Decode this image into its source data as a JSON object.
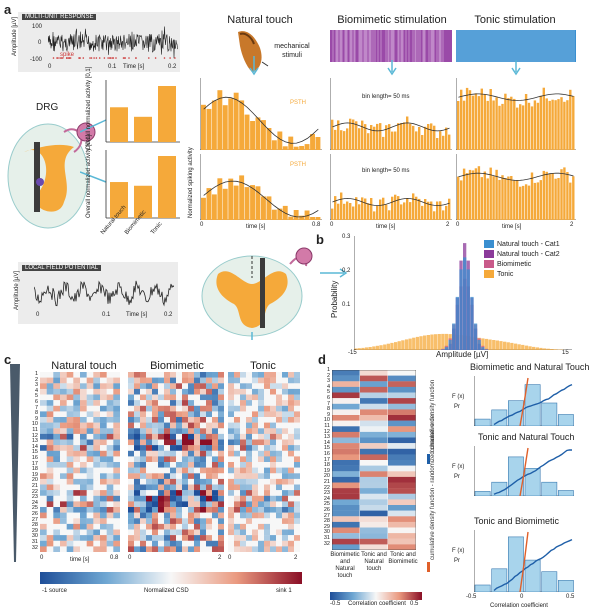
{
  "panels": {
    "a": {
      "letter": "a",
      "mua_title": "MULTI-UNIT RESPONSE",
      "mua_ylabel": "Amplitude [µV]",
      "mua_yticks": [
        "100",
        "0",
        "-100"
      ],
      "mua_xticks": [
        "0",
        "0.1",
        "0.2"
      ],
      "mua_xlabel": "Time [s]",
      "spike_label": "spike",
      "lfp_title": "LOCAL FIELD POTENTIAL",
      "lfp_ylabel": "Amplitude [µV]",
      "lfp_xticks": [
        "0",
        "0.1",
        "0.2"
      ],
      "lfp_xlabel": "Time [s]",
      "drg_label": "DRG",
      "bar_ylabel_top": "Overall normalized activity [0,1]",
      "bar_ylabel_bottom": "Overall normalized activity [0,1]",
      "bar_categories": [
        "Natural touch",
        "Biomimetic",
        "Tonic"
      ],
      "bar_top_values": [
        0.62,
        0.45,
        1.0
      ],
      "bar_bottom_values": [
        0.58,
        0.52,
        1.0
      ],
      "columns": [
        "Natural touch",
        "Biomimetic stimulation",
        "Tonic stimulation"
      ],
      "mechanical_label": "mechanical stimuli",
      "psth_label": "PSTH",
      "bin_label": "bin length= 50 ms",
      "psth_ylabel": "Normalized spiking activity",
      "psth_xlabel": "time [s]",
      "natural_xticks": [
        "0",
        "0.8"
      ],
      "stim_xticks": [
        "0",
        "2"
      ]
    },
    "b": {
      "letter": "b",
      "ylabel": "Probability",
      "xlabel": "Amplitude [µV]",
      "yticks": [
        "0.3",
        "0.2",
        "0.1",
        "0"
      ],
      "xticks": [
        "-15",
        "0",
        "15"
      ],
      "legend": [
        "Natural touch - Cat1",
        "Natural touch - Cat2",
        "Biomimetic",
        "Tonic"
      ]
    },
    "c": {
      "letter": "c",
      "titles": [
        "Natural touch",
        "Biomimetic",
        "Tonic"
      ],
      "channels": [
        "1",
        "2",
        "3",
        "4",
        "5",
        "6",
        "7",
        "8",
        "9",
        "10",
        "11",
        "12",
        "13",
        "14",
        "15",
        "16",
        "17",
        "18",
        "19",
        "20",
        "21",
        "22",
        "23",
        "24",
        "25",
        "26",
        "27",
        "28",
        "29",
        "30",
        "31",
        "32"
      ],
      "xlabel": "time [s]",
      "xticks_natural": [
        "0",
        "0.8"
      ],
      "xticks_bio": [
        "0",
        "2"
      ],
      "xticks_tonic": [
        "0",
        "2"
      ],
      "colorbar_left": "-1 source",
      "colorbar_center": "Normalized CSD",
      "colorbar_right": "sink  1"
    },
    "d": {
      "letter": "d",
      "columns": [
        "Biomimetic and Natural touch",
        "Tonic and Natural touch",
        "Tonic and Biomimetic"
      ],
      "colorbar_left": "-0.5",
      "colorbar_center": "Correlation coefficient",
      "colorbar_right": "0.5",
      "cdf_titles": [
        "Biomimetic and Natural Touch",
        "Tonic and Natural Touch",
        "Tonic and Biomimetic"
      ],
      "cdf_ylabel_fx": "F (x)",
      "cdf_ylabel_pr": "Pr",
      "cdf_side_label_1": "cumulative density function",
      "cdf_side_label_2": "cumulative density function - randomized channel order",
      "cdf_xticks": [
        "-0.5",
        "0",
        "0.5"
      ],
      "cdf_xlabel": "Correlation coefficient"
    }
  },
  "colors": {
    "orange": "#f5a93a",
    "purple": "#8b3a9a",
    "blue": "#3a8fd0",
    "teal": "#5ab8d6",
    "dark_blue": "#1f5fa8",
    "red": "#b2182b",
    "gray_bg": "#ececec"
  },
  "chart_data": [
    {
      "type": "bar",
      "categories": [
        "Natural touch",
        "Biomimetic",
        "Tonic"
      ],
      "values": [
        0.62,
        0.45,
        1.0
      ],
      "ylabel": "Overall normalized activity [0,1]"
    },
    {
      "type": "bar",
      "categories": [
        "Natural touch",
        "Biomimetic",
        "Tonic"
      ],
      "values": [
        0.58,
        0.52,
        1.0
      ],
      "ylabel": "Overall normalized activity [0,1]"
    },
    {
      "type": "bar",
      "xlabel": "Amplitude [µV]",
      "ylabel": "Probability",
      "xlim": [
        -15,
        15
      ],
      "ylim": [
        0,
        0.3
      ],
      "series": [
        {
          "name": "Natural touch - Cat1",
          "values": [
            0.02,
            0.05,
            0.12,
            0.3,
            0.14,
            0.06,
            0.02
          ]
        },
        {
          "name": "Natural touch - Cat2",
          "values": [
            0.02,
            0.04,
            0.1,
            0.24,
            0.12,
            0.05,
            0.02
          ]
        },
        {
          "name": "Biomimetic",
          "values": [
            0.01,
            0.03,
            0.08,
            0.2,
            0.1,
            0.04,
            0.01
          ]
        },
        {
          "name": "Tonic",
          "values": [
            0.02,
            0.05,
            0.04,
            0.03,
            0.04,
            0.02,
            0.01
          ]
        }
      ]
    }
  ]
}
